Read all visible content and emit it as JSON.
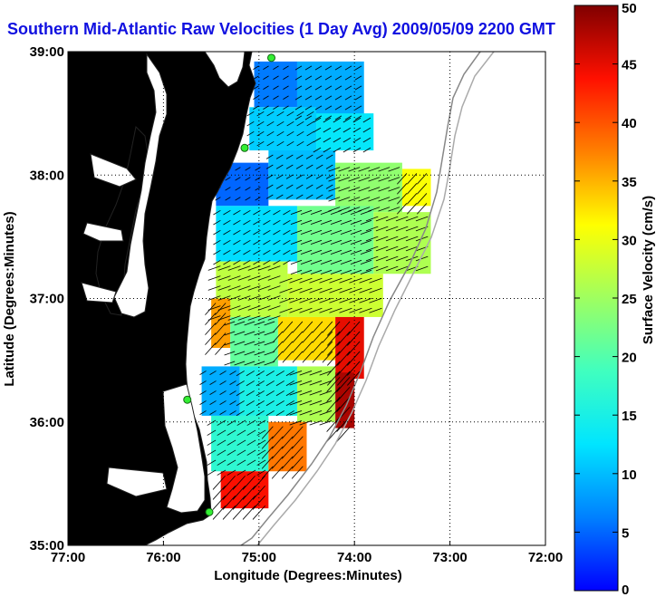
{
  "chart_data": {
    "type": "heatmap",
    "title": "Southern Mid-Atlantic Raw Velocities (1 Day Avg) 2009/05/09 2200 GMT",
    "xlabel": "Longitude (Degrees:Minutes)",
    "ylabel": "Latitude (Degrees:Minutes)",
    "xlim": [
      -77,
      -72
    ],
    "ylim": [
      35,
      39
    ],
    "x_ticks": [
      {
        "value": -77,
        "label": "77:00"
      },
      {
        "value": -76,
        "label": "76:00"
      },
      {
        "value": -75,
        "label": "75:00"
      },
      {
        "value": -74,
        "label": "74:00"
      },
      {
        "value": -73,
        "label": "73:00"
      },
      {
        "value": -72,
        "label": "72:00"
      }
    ],
    "y_ticks": [
      {
        "value": 35,
        "label": "35:00"
      },
      {
        "value": 36,
        "label": "36:00"
      },
      {
        "value": 37,
        "label": "37:00"
      },
      {
        "value": 38,
        "label": "38:00"
      },
      {
        "value": 39,
        "label": "39:00"
      }
    ],
    "grid": "dotted",
    "colorbar": {
      "label": "Surface Velocity (cm/s)",
      "min": 0,
      "max": 50,
      "ticks": [
        0,
        5,
        10,
        15,
        20,
        25,
        30,
        35,
        40,
        45,
        50
      ],
      "colormap": "jet",
      "placement": "right"
    },
    "land_color": "#55f5a8",
    "stations": [
      {
        "lon": -74.87,
        "lat": 38.95
      },
      {
        "lon": -75.15,
        "lat": 38.22
      },
      {
        "lon": -75.75,
        "lat": 36.18
      },
      {
        "lon": -75.52,
        "lat": 35.27
      }
    ],
    "regions": [
      {
        "lon": [
          -75.05,
          -74.6
        ],
        "lat": [
          38.55,
          38.92
        ],
        "speed": 6
      },
      {
        "lon": [
          -74.6,
          -73.9
        ],
        "lat": [
          38.45,
          38.92
        ],
        "speed": 9
      },
      {
        "lon": [
          -75.1,
          -74.4
        ],
        "lat": [
          38.2,
          38.55
        ],
        "speed": 11
      },
      {
        "lon": [
          -74.4,
          -73.8
        ],
        "lat": [
          38.2,
          38.5
        ],
        "speed": 13
      },
      {
        "lon": [
          -75.45,
          -74.9
        ],
        "lat": [
          37.75,
          38.1
        ],
        "speed": 5
      },
      {
        "lon": [
          -74.9,
          -74.2
        ],
        "lat": [
          37.8,
          38.2
        ],
        "speed": 10
      },
      {
        "lon": [
          -74.2,
          -73.5
        ],
        "lat": [
          37.7,
          38.1
        ],
        "speed": 24
      },
      {
        "lon": [
          -73.5,
          -73.2
        ],
        "lat": [
          37.75,
          38.05
        ],
        "speed": 31
      },
      {
        "lon": [
          -75.45,
          -74.6
        ],
        "lat": [
          37.3,
          37.75
        ],
        "speed": 12
      },
      {
        "lon": [
          -74.6,
          -73.8
        ],
        "lat": [
          37.2,
          37.75
        ],
        "speed": 22
      },
      {
        "lon": [
          -73.8,
          -73.2
        ],
        "lat": [
          37.2,
          37.7
        ],
        "speed": 26
      },
      {
        "lon": [
          -75.45,
          -74.7
        ],
        "lat": [
          36.85,
          37.3
        ],
        "speed": 27
      },
      {
        "lon": [
          -74.7,
          -73.7
        ],
        "lat": [
          36.85,
          37.2
        ],
        "speed": 28
      },
      {
        "lon": [
          -75.5,
          -75.3
        ],
        "lat": [
          36.6,
          37.0
        ],
        "speed": 36
      },
      {
        "lon": [
          -75.3,
          -74.8
        ],
        "lat": [
          36.45,
          36.85
        ],
        "speed": 21
      },
      {
        "lon": [
          -74.8,
          -74.2
        ],
        "lat": [
          36.5,
          36.85
        ],
        "speed": 33
      },
      {
        "lon": [
          -74.2,
          -73.9
        ],
        "lat": [
          36.35,
          36.85
        ],
        "speed": 45
      },
      {
        "lon": [
          -75.6,
          -75.2
        ],
        "lat": [
          36.05,
          36.45
        ],
        "speed": 9
      },
      {
        "lon": [
          -75.2,
          -74.6
        ],
        "lat": [
          36.05,
          36.45
        ],
        "speed": 15
      },
      {
        "lon": [
          -74.6,
          -74.2
        ],
        "lat": [
          36.0,
          36.45
        ],
        "speed": 26
      },
      {
        "lon": [
          -74.2,
          -74.0
        ],
        "lat": [
          35.95,
          36.4
        ],
        "speed": 48
      },
      {
        "lon": [
          -75.5,
          -74.9
        ],
        "lat": [
          35.6,
          36.05
        ],
        "speed": 17
      },
      {
        "lon": [
          -74.9,
          -74.5
        ],
        "lat": [
          35.6,
          36.0
        ],
        "speed": 38
      },
      {
        "lon": [
          -75.4,
          -74.9
        ],
        "lat": [
          35.3,
          35.6
        ],
        "speed": 44
      }
    ]
  }
}
